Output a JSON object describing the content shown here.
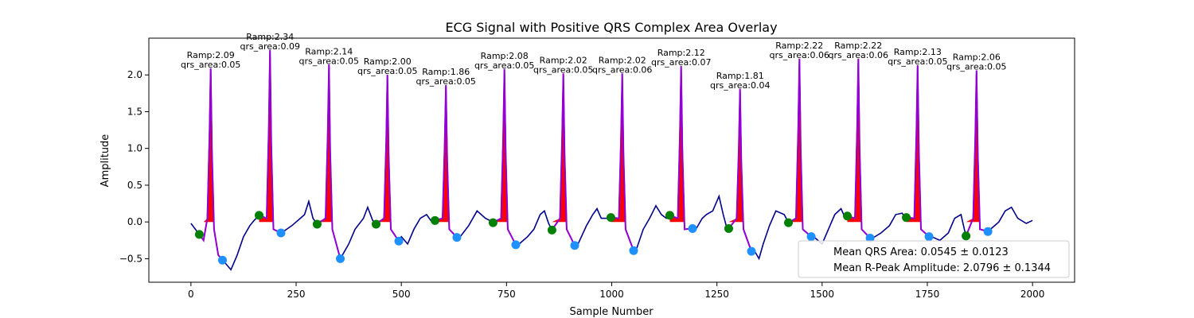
{
  "chart_data": {
    "type": "line",
    "title": "ECG Signal with Positive QRS Complex Area Overlay",
    "xlabel": "Sample Number",
    "ylabel": "Amplitude",
    "xlim": [
      -100,
      2100
    ],
    "ylim": [
      -0.82,
      2.5
    ],
    "xticks": [
      0,
      250,
      500,
      750,
      1000,
      1250,
      1500,
      1750,
      2000
    ],
    "yticks": [
      -0.5,
      0.0,
      0.5,
      1.0,
      1.5,
      2.0
    ],
    "colors": {
      "signal": "#00008b",
      "qrs": "#9400d3",
      "area": "#ff0000",
      "q_point": "#008000",
      "s_point": "#1e90ff"
    },
    "beats": [
      {
        "r_x": 47,
        "r_y": 2.09,
        "q_x": 20,
        "q_y": -0.17,
        "s_x": 75,
        "s_y": -0.52,
        "qrs_area": 0.05,
        "label1": "Ramp:2.09",
        "label2": "qrs_area:0.05"
      },
      {
        "r_x": 188,
        "r_y": 2.34,
        "q_x": 162,
        "q_y": 0.09,
        "s_x": 214,
        "s_y": -0.15,
        "qrs_area": 0.09,
        "label1": "Ramp:2.34",
        "label2": "qrs_area:0.09"
      },
      {
        "r_x": 328,
        "r_y": 2.14,
        "q_x": 300,
        "q_y": -0.03,
        "s_x": 355,
        "s_y": -0.5,
        "qrs_area": 0.05,
        "label1": "Ramp:2.14",
        "label2": "qrs_area:0.05"
      },
      {
        "r_x": 467,
        "r_y": 2.0,
        "q_x": 440,
        "q_y": -0.03,
        "s_x": 494,
        "s_y": -0.26,
        "qrs_area": 0.05,
        "label1": "Ramp:2.00",
        "label2": "qrs_area:0.05"
      },
      {
        "r_x": 606,
        "r_y": 1.86,
        "q_x": 580,
        "q_y": 0.02,
        "s_x": 632,
        "s_y": -0.21,
        "qrs_area": 0.05,
        "label1": "Ramp:1.86",
        "label2": "qrs_area:0.05"
      },
      {
        "r_x": 745,
        "r_y": 2.08,
        "q_x": 718,
        "q_y": -0.01,
        "s_x": 772,
        "s_y": -0.31,
        "qrs_area": 0.05,
        "label1": "Ramp:2.08",
        "label2": "qrs_area:0.05"
      },
      {
        "r_x": 885,
        "r_y": 2.02,
        "q_x": 858,
        "q_y": -0.11,
        "s_x": 912,
        "s_y": -0.32,
        "qrs_area": 0.05,
        "label1": "Ramp:2.02",
        "label2": "qrs_area:0.05"
      },
      {
        "r_x": 1025,
        "r_y": 2.02,
        "q_x": 998,
        "q_y": 0.06,
        "s_x": 1052,
        "s_y": -0.39,
        "qrs_area": 0.06,
        "label1": "Ramp:2.02",
        "label2": "qrs_area:0.06"
      },
      {
        "r_x": 1165,
        "r_y": 2.12,
        "q_x": 1138,
        "q_y": 0.09,
        "s_x": 1192,
        "s_y": -0.09,
        "qrs_area": 0.07,
        "label1": "Ramp:2.12",
        "label2": "qrs_area:0.07"
      },
      {
        "r_x": 1305,
        "r_y": 1.81,
        "q_x": 1278,
        "q_y": -0.09,
        "s_x": 1332,
        "s_y": -0.4,
        "qrs_area": 0.04,
        "label1": "Ramp:1.81",
        "label2": "qrs_area:0.04"
      },
      {
        "r_x": 1446,
        "r_y": 2.22,
        "q_x": 1420,
        "q_y": -0.01,
        "s_x": 1474,
        "s_y": -0.2,
        "qrs_area": 0.06,
        "label1": "Ramp:2.22",
        "label2": "qrs_area:0.06"
      },
      {
        "r_x": 1586,
        "r_y": 2.22,
        "q_x": 1560,
        "q_y": 0.08,
        "s_x": 1614,
        "s_y": -0.22,
        "qrs_area": 0.06,
        "label1": "Ramp:2.22",
        "label2": "qrs_area:0.06"
      },
      {
        "r_x": 1727,
        "r_y": 2.13,
        "q_x": 1700,
        "q_y": 0.06,
        "s_x": 1754,
        "s_y": -0.2,
        "qrs_area": 0.05,
        "label1": "Ramp:2.13",
        "label2": "qrs_area:0.05"
      },
      {
        "r_x": 1867,
        "r_y": 2.06,
        "q_x": 1842,
        "q_y": -0.19,
        "s_x": 1894,
        "s_y": -0.13,
        "qrs_area": 0.05,
        "label1": "Ramp:2.06",
        "label2": "qrs_area:0.05"
      }
    ],
    "baseline": [
      [
        0,
        -0.02
      ],
      [
        30,
        -0.25
      ],
      [
        65,
        -0.45
      ],
      [
        80,
        -0.55
      ],
      [
        95,
        -0.65
      ],
      [
        110,
        -0.45
      ],
      [
        125,
        -0.2
      ],
      [
        140,
        -0.05
      ],
      [
        150,
        0.02
      ],
      [
        215,
        -0.15
      ],
      [
        240,
        -0.05
      ],
      [
        260,
        0.05
      ],
      [
        270,
        0.1
      ],
      [
        280,
        0.28
      ],
      [
        290,
        0.05
      ],
      [
        360,
        -0.45
      ],
      [
        375,
        -0.3
      ],
      [
        390,
        -0.1
      ],
      [
        410,
        0.05
      ],
      [
        420,
        0.2
      ],
      [
        432,
        0.02
      ],
      [
        500,
        -0.2
      ],
      [
        515,
        -0.3
      ],
      [
        530,
        -0.1
      ],
      [
        545,
        0.05
      ],
      [
        560,
        0.1
      ],
      [
        570,
        0.02
      ],
      [
        640,
        -0.2
      ],
      [
        660,
        -0.05
      ],
      [
        680,
        0.15
      ],
      [
        700,
        0.05
      ],
      [
        710,
        0.02
      ],
      [
        780,
        -0.3
      ],
      [
        800,
        -0.2
      ],
      [
        815,
        -0.1
      ],
      [
        830,
        0.1
      ],
      [
        840,
        0.15
      ],
      [
        850,
        -0.02
      ],
      [
        920,
        -0.3
      ],
      [
        940,
        -0.05
      ],
      [
        955,
        0.1
      ],
      [
        965,
        0.18
      ],
      [
        975,
        0.05
      ],
      [
        990,
        0.05
      ],
      [
        1060,
        -0.35
      ],
      [
        1075,
        -0.1
      ],
      [
        1090,
        0.05
      ],
      [
        1105,
        0.22
      ],
      [
        1118,
        0.1
      ],
      [
        1130,
        0.05
      ],
      [
        1200,
        -0.1
      ],
      [
        1215,
        0.05
      ],
      [
        1225,
        0.1
      ],
      [
        1240,
        0.15
      ],
      [
        1255,
        0.35
      ],
      [
        1265,
        0.1
      ],
      [
        1272,
        -0.05
      ],
      [
        1340,
        -0.4
      ],
      [
        1350,
        -0.5
      ],
      [
        1360,
        -0.3
      ],
      [
        1375,
        -0.05
      ],
      [
        1390,
        0.15
      ],
      [
        1410,
        0.1
      ],
      [
        1480,
        -0.2
      ],
      [
        1500,
        -0.3
      ],
      [
        1515,
        -0.1
      ],
      [
        1530,
        0.1
      ],
      [
        1545,
        0.18
      ],
      [
        1555,
        0.05
      ],
      [
        1620,
        -0.22
      ],
      [
        1640,
        -0.15
      ],
      [
        1660,
        -0.05
      ],
      [
        1675,
        0.1
      ],
      [
        1690,
        0.12
      ],
      [
        1698,
        0.05
      ],
      [
        1760,
        -0.2
      ],
      [
        1780,
        -0.25
      ],
      [
        1800,
        -0.15
      ],
      [
        1815,
        0.05
      ],
      [
        1830,
        0.1
      ],
      [
        1838,
        -0.1
      ],
      [
        1900,
        -0.1
      ],
      [
        1920,
        0.0
      ],
      [
        1935,
        0.15
      ],
      [
        1950,
        0.2
      ],
      [
        1965,
        0.05
      ],
      [
        1985,
        -0.02
      ],
      [
        2000,
        0.02
      ]
    ],
    "legend": {
      "placement": "bottom-right",
      "entries": [
        "Mean QRS Area: 0.0545 ± 0.0123",
        "Mean R-Peak Amplitude: 2.0796 ± 0.1344"
      ]
    }
  }
}
